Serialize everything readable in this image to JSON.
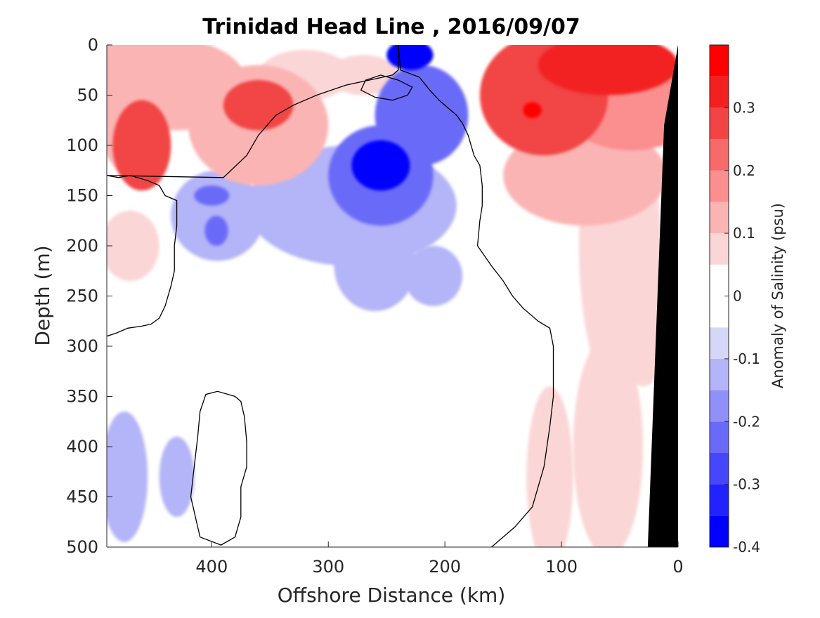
{
  "chart_data": {
    "type": "heatmap",
    "title": "Trinidad Head Line , 2016/09/07",
    "xlabel": "Offshore Distance (km)",
    "ylabel": "Depth (m)",
    "xlim": [
      490,
      0
    ],
    "ylim": [
      0,
      500
    ],
    "x_reversed": true,
    "y_reversed": true,
    "xticks": [
      400,
      300,
      200,
      100,
      0
    ],
    "yticks": [
      0,
      50,
      100,
      150,
      200,
      250,
      300,
      350,
      400,
      450,
      500
    ],
    "colorbar": {
      "label": "Anomaly of Salinity (psu)",
      "range": [
        -0.4,
        0.4
      ],
      "levels": [
        -0.4,
        -0.35,
        -0.3,
        -0.25,
        -0.2,
        -0.15,
        -0.1,
        -0.05,
        0.05,
        0.1,
        0.15,
        0.2,
        0.25,
        0.3,
        0.35,
        0.4
      ],
      "colors": [
        "#0000ff",
        "#2222ff",
        "#4646fb",
        "#6a6af8",
        "#9090f8",
        "#b4b4f8",
        "#d6d6f8",
        "#ffffff",
        "#fbd6d6",
        "#fbb4b4",
        "#fb8e8e",
        "#f66a6a",
        "#f24444",
        "#f22020",
        "#ff0000"
      ],
      "ticks": [
        -0.4,
        -0.3,
        -0.2,
        -0.1,
        0,
        0.1,
        0.2,
        0.3
      ],
      "tick_labels": [
        "-0.4",
        "-0.3",
        "-0.2",
        "-0.1",
        "0",
        "0.1",
        "0.2",
        "0.3"
      ]
    },
    "colors": {
      "bathymetry": "#000000",
      "zero_contour": "#000000"
    },
    "blobs": [
      {
        "x": 470,
        "y": 50,
        "rx": 30,
        "ry": 80,
        "v": 0.15
      },
      {
        "x": 460,
        "y": 100,
        "rx": 25,
        "ry": 45,
        "v": 0.3
      },
      {
        "x": 430,
        "y": 40,
        "rx": 60,
        "ry": 45,
        "v": 0.15
      },
      {
        "x": 360,
        "y": 80,
        "rx": 60,
        "ry": 60,
        "v": 0.15
      },
      {
        "x": 360,
        "y": 60,
        "rx": 30,
        "ry": 25,
        "v": 0.3
      },
      {
        "x": 470,
        "y": 200,
        "rx": 25,
        "ry": 35,
        "v": 0.1
      },
      {
        "x": 320,
        "y": 30,
        "rx": 40,
        "ry": 25,
        "v": 0.1
      },
      {
        "x": 270,
        "y": 30,
        "rx": 30,
        "ry": 20,
        "v": 0.1
      },
      {
        "x": 255,
        "y": 130,
        "rx": 45,
        "ry": 50,
        "v": -0.2
      },
      {
        "x": 220,
        "y": 70,
        "rx": 40,
        "ry": 50,
        "v": -0.2
      },
      {
        "x": 255,
        "y": 120,
        "rx": 25,
        "ry": 25,
        "v": -0.35
      },
      {
        "x": 230,
        "y": 10,
        "rx": 20,
        "ry": 15,
        "v": -0.35
      },
      {
        "x": 280,
        "y": 160,
        "rx": 90,
        "ry": 60,
        "v": -0.1
      },
      {
        "x": 260,
        "y": 220,
        "rx": 35,
        "ry": 45,
        "v": -0.1
      },
      {
        "x": 210,
        "y": 230,
        "rx": 25,
        "ry": 30,
        "v": -0.1
      },
      {
        "x": 395,
        "y": 170,
        "rx": 40,
        "ry": 45,
        "v": -0.1
      },
      {
        "x": 400,
        "y": 150,
        "rx": 15,
        "ry": 10,
        "v": -0.2
      },
      {
        "x": 396,
        "y": 185,
        "rx": 10,
        "ry": 15,
        "v": -0.2
      },
      {
        "x": 475,
        "y": 430,
        "rx": 20,
        "ry": 65,
        "v": -0.1
      },
      {
        "x": 430,
        "y": 430,
        "rx": 15,
        "ry": 40,
        "v": -0.1
      },
      {
        "x": 115,
        "y": 50,
        "rx": 55,
        "ry": 60,
        "v": 0.3
      },
      {
        "x": 60,
        "y": 20,
        "rx": 60,
        "ry": 30,
        "v": 0.35
      },
      {
        "x": 40,
        "y": 60,
        "rx": 60,
        "ry": 45,
        "v": 0.2
      },
      {
        "x": 80,
        "y": 130,
        "rx": 70,
        "ry": 50,
        "v": 0.15
      },
      {
        "x": 125,
        "y": 65,
        "rx": 8,
        "ry": 8,
        "v": 0.4
      },
      {
        "x": 50,
        "y": 200,
        "rx": 35,
        "ry": 150,
        "v": 0.1
      },
      {
        "x": 110,
        "y": 430,
        "rx": 20,
        "ry": 90,
        "v": 0.1
      },
      {
        "x": 60,
        "y": 400,
        "rx": 30,
        "ry": 110,
        "v": 0.1
      },
      {
        "x": 30,
        "y": 260,
        "rx": 25,
        "ry": 80,
        "v": 0.1
      }
    ],
    "zero_contours": [
      [
        [
          240,
          0
        ],
        [
          238,
          25
        ],
        [
          222,
          32
        ],
        [
          213,
          45
        ],
        [
          205,
          55
        ],
        [
          198,
          62
        ],
        [
          190,
          70
        ],
        [
          185,
          78
        ],
        [
          180,
          90
        ],
        [
          175,
          110
        ],
        [
          170,
          120
        ],
        [
          168,
          140
        ],
        [
          168,
          160
        ],
        [
          170,
          175
        ],
        [
          172,
          200
        ],
        [
          160,
          220
        ],
        [
          150,
          235
        ],
        [
          142,
          250
        ],
        [
          133,
          262
        ],
        [
          120,
          275
        ],
        [
          110,
          282
        ],
        [
          107,
          300
        ],
        [
          107,
          350
        ],
        [
          110,
          380
        ],
        [
          115,
          420
        ],
        [
          120,
          440
        ],
        [
          125,
          460
        ],
        [
          140,
          480
        ],
        [
          160,
          500
        ]
      ],
      [
        [
          490,
          290
        ],
        [
          482,
          287
        ],
        [
          472,
          282
        ],
        [
          460,
          280
        ],
        [
          452,
          278
        ],
        [
          445,
          272
        ],
        [
          440,
          260
        ],
        [
          435,
          240
        ],
        [
          432,
          225
        ],
        [
          432,
          200
        ],
        [
          430,
          180
        ],
        [
          430,
          155
        ],
        [
          440,
          150
        ],
        [
          445,
          140
        ],
        [
          455,
          135
        ],
        [
          470,
          130
        ],
        [
          480,
          132
        ],
        [
          490,
          130
        ]
      ],
      [
        [
          490,
          130
        ],
        [
          390,
          132
        ],
        [
          370,
          110
        ],
        [
          360,
          90
        ],
        [
          345,
          70
        ],
        [
          330,
          60
        ],
        [
          310,
          50
        ],
        [
          285,
          40
        ],
        [
          265,
          35
        ],
        [
          245,
          30
        ],
        [
          240,
          25
        ],
        [
          240,
          0
        ]
      ],
      [
        [
          380,
          350
        ],
        [
          395,
          345
        ],
        [
          405,
          348
        ],
        [
          410,
          365
        ],
        [
          412,
          390
        ],
        [
          415,
          420
        ],
        [
          418,
          450
        ],
        [
          410,
          490
        ],
        [
          392,
          498
        ],
        [
          380,
          490
        ],
        [
          375,
          470
        ],
        [
          375,
          440
        ],
        [
          370,
          420
        ],
        [
          370,
          395
        ],
        [
          372,
          370
        ],
        [
          375,
          355
        ],
        [
          380,
          350
        ]
      ],
      [
        [
          240,
          35
        ],
        [
          255,
          30
        ],
        [
          268,
          35
        ],
        [
          272,
          45
        ],
        [
          260,
          52
        ],
        [
          245,
          55
        ],
        [
          232,
          50
        ],
        [
          228,
          42
        ],
        [
          240,
          35
        ]
      ]
    ],
    "bathymetry": [
      [
        0,
        0
      ],
      [
        0,
        500
      ],
      [
        26,
        500
      ],
      [
        12,
        80
      ],
      [
        0,
        0
      ]
    ]
  }
}
